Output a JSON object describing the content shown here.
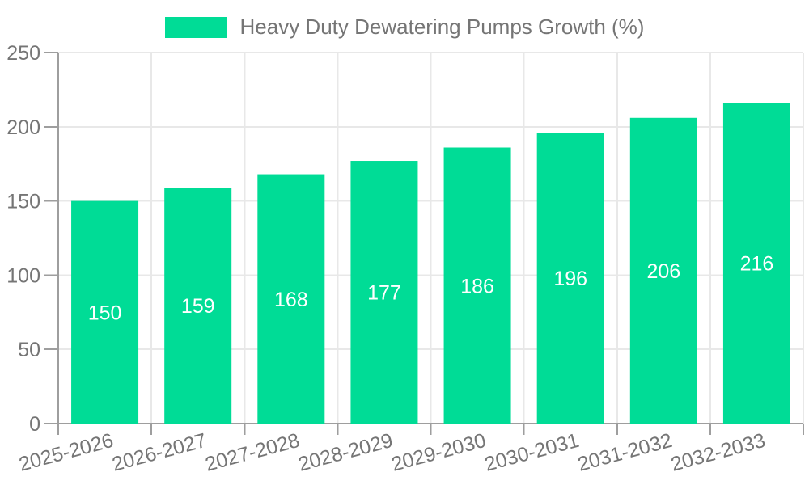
{
  "chart_data": {
    "type": "bar",
    "title": "Heavy Duty Dewatering Pumps Growth (%)",
    "categories": [
      "2025-2026",
      "2026-2027",
      "2027-2028",
      "2028-2029",
      "2029-2030",
      "2030-2031",
      "2031-2032",
      "2032-2033"
    ],
    "values": [
      150,
      159,
      168,
      177,
      186,
      196,
      206,
      216
    ],
    "value_labels": [
      "150",
      "159",
      "168",
      "177",
      "186",
      "196",
      "206",
      "216"
    ],
    "ytick_labels": [
      "0",
      "50",
      "100",
      "150",
      "200",
      "250"
    ],
    "yticks": [
      0,
      50,
      100,
      150,
      200,
      250
    ],
    "ylim": [
      0,
      250
    ],
    "xlabel": "",
    "ylabel": "",
    "grid": true,
    "legend_position": "top",
    "xtick_rotation_deg": -15,
    "colors": {
      "bar": "#00DC96",
      "value_label": "#FFFFFF",
      "axis": "#9E9E9E",
      "grid": "#E8E8E8",
      "text": "#757575",
      "background": "#FFFFFF"
    }
  }
}
